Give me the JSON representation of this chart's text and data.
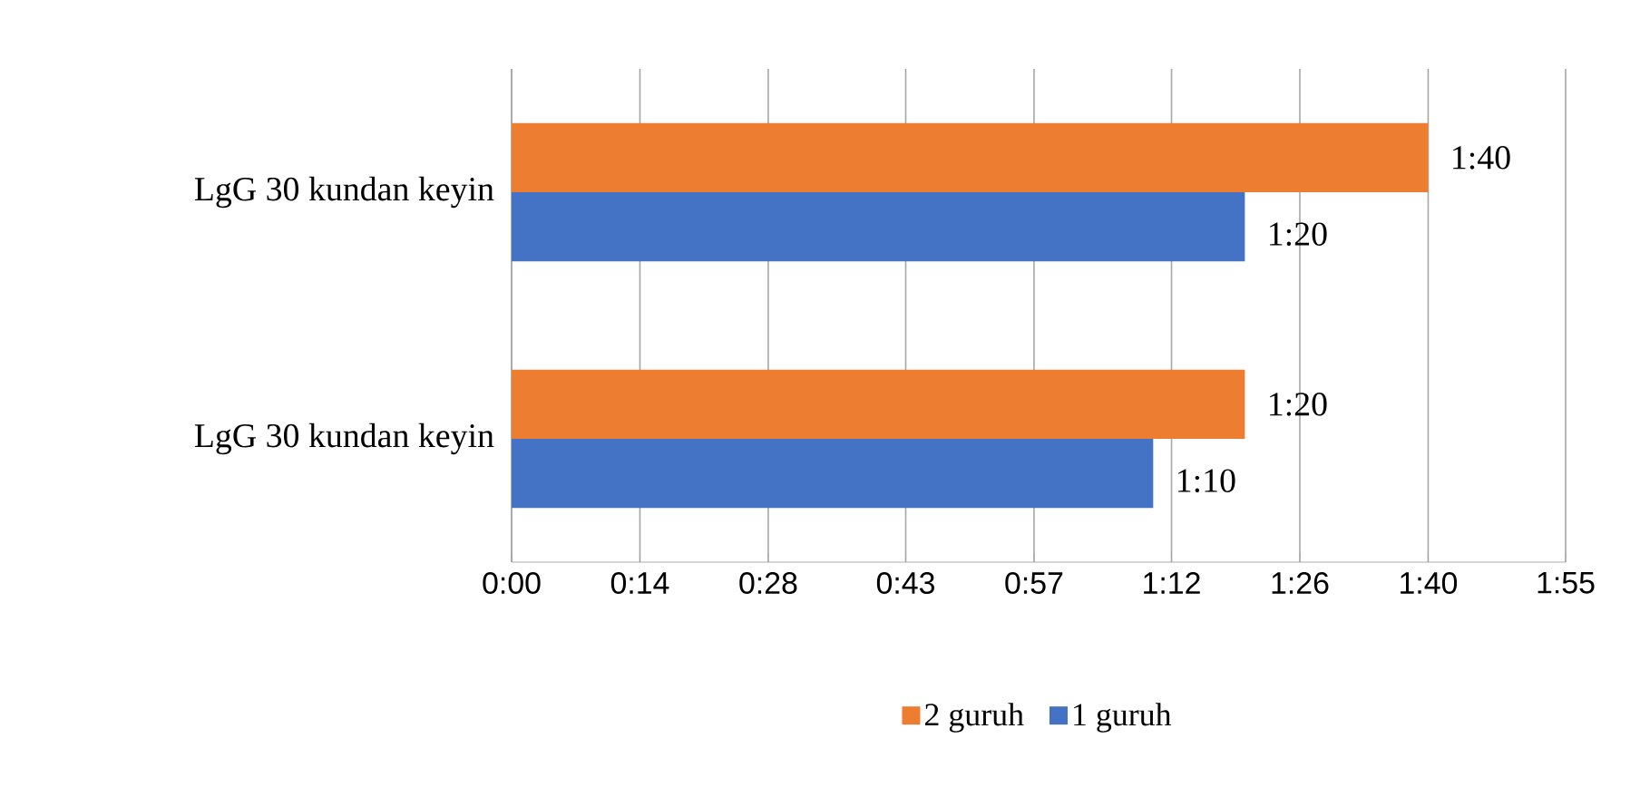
{
  "chart_data": {
    "type": "bar",
    "orientation": "horizontal",
    "categories": [
      "LgG 30 kundan keyin",
      "LgG 30 kundan keyin"
    ],
    "series": [
      {
        "name": "2 guruh",
        "color": "#ed7d31",
        "values": [
          100,
          80
        ],
        "value_labels": [
          "1:40",
          "1:20"
        ]
      },
      {
        "name": "1 guruh",
        "color": "#4472c4",
        "values": [
          80,
          70
        ],
        "value_labels": [
          "1:20",
          "1:10"
        ]
      }
    ],
    "xlim": [
      0,
      115
    ],
    "xticks": [
      {
        "value": 0,
        "label": "0:00"
      },
      {
        "value": 14,
        "label": "0:14"
      },
      {
        "value": 28,
        "label": "0:28"
      },
      {
        "value": 43,
        "label": "0:43"
      },
      {
        "value": 57,
        "label": "0:57"
      },
      {
        "value": 72,
        "label": "1:12"
      },
      {
        "value": 86,
        "label": "1:26"
      },
      {
        "value": 100,
        "label": "1:40"
      },
      {
        "value": 115,
        "label": "1:55"
      }
    ],
    "grid": "x",
    "legend": "bottom"
  }
}
